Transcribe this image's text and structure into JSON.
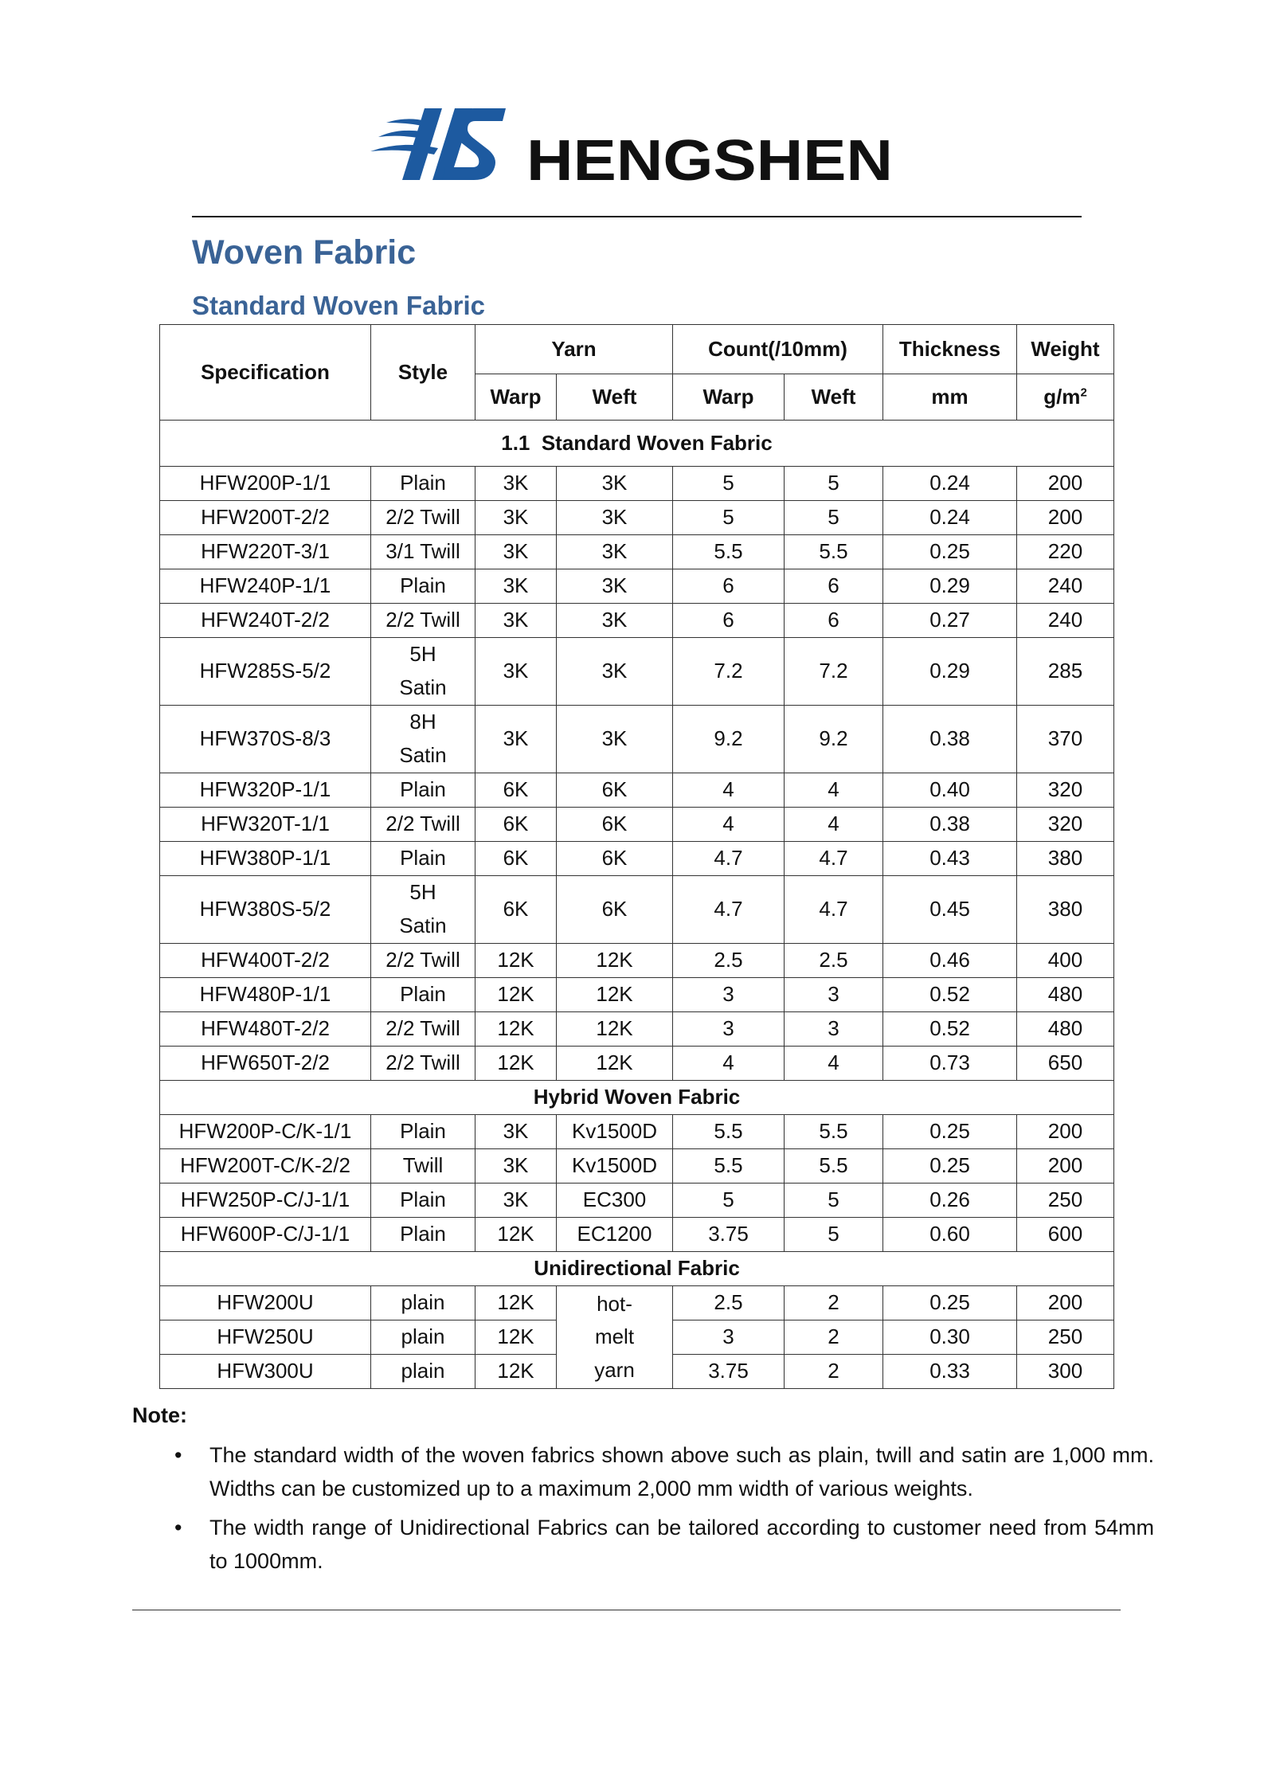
{
  "logo": {
    "monogram": "HS",
    "wordmark": "HENGSHEN",
    "brand_color": "#1d5aa0"
  },
  "title": "Woven Fabric",
  "subtitle": "Standard Woven Fabric",
  "table": {
    "headers": {
      "specification": "Specification",
      "style": "Style",
      "yarn": "Yarn",
      "count": "Count(/10mm)",
      "thickness": "Thickness",
      "weight": "Weight",
      "yarn_warp": "Warp",
      "yarn_weft": "Weft",
      "count_warp": "Warp",
      "count_weft": "Weft",
      "thickness_unit": "mm",
      "weight_unit": "g/m",
      "weight_unit_sup": "2"
    },
    "sections": [
      {
        "title": "1.1  Standard Woven Fabric",
        "rows": [
          [
            "HFW200P-1/1",
            "Plain",
            "3K",
            "3K",
            "5",
            "5",
            "0.24",
            "200"
          ],
          [
            "HFW200T-2/2",
            "2/2 Twill",
            "3K",
            "3K",
            "5",
            "5",
            "0.24",
            "200"
          ],
          [
            "HFW220T-3/1",
            "3/1 Twill",
            "3K",
            "3K",
            "5.5",
            "5.5",
            "0.25",
            "220"
          ],
          [
            "HFW240P-1/1",
            "Plain",
            "3K",
            "3K",
            "6",
            "6",
            "0.29",
            "240"
          ],
          [
            "HFW240T-2/2",
            "2/2 Twill",
            "3K",
            "3K",
            "6",
            "6",
            "0.27",
            "240"
          ],
          [
            "HFW285S-5/2",
            "5H Satin",
            "3K",
            "3K",
            "7.2",
            "7.2",
            "0.29",
            "285"
          ],
          [
            "HFW370S-8/3",
            "8H Satin",
            "3K",
            "3K",
            "9.2",
            "9.2",
            "0.38",
            "370"
          ],
          [
            "HFW320P-1/1",
            "Plain",
            "6K",
            "6K",
            "4",
            "4",
            "0.40",
            "320"
          ],
          [
            "HFW320T-1/1",
            "2/2 Twill",
            "6K",
            "6K",
            "4",
            "4",
            "0.38",
            "320"
          ],
          [
            "HFW380P-1/1",
            "Plain",
            "6K",
            "6K",
            "4.7",
            "4.7",
            "0.43",
            "380"
          ],
          [
            "HFW380S-5/2",
            "5H Satin",
            "6K",
            "6K",
            "4.7",
            "4.7",
            "0.45",
            "380"
          ],
          [
            "HFW400T-2/2",
            "2/2 Twill",
            "12K",
            "12K",
            "2.5",
            "2.5",
            "0.46",
            "400"
          ],
          [
            "HFW480P-1/1",
            "Plain",
            "12K",
            "12K",
            "3",
            "3",
            "0.52",
            "480"
          ],
          [
            "HFW480T-2/2",
            "2/2 Twill",
            "12K",
            "12K",
            "3",
            "3",
            "0.52",
            "480"
          ],
          [
            "HFW650T-2/2",
            "2/2 Twill",
            "12K",
            "12K",
            "4",
            "4",
            "0.73",
            "650"
          ]
        ]
      },
      {
        "title": "Hybrid Woven Fabric",
        "rows": [
          [
            "HFW200P-C/K-1/1",
            "Plain",
            "3K",
            "Kv1500D",
            "5.5",
            "5.5",
            "0.25",
            "200"
          ],
          [
            "HFW200T-C/K-2/2",
            "Twill",
            "3K",
            "Kv1500D",
            "5.5",
            "5.5",
            "0.25",
            "200"
          ],
          [
            "HFW250P-C/J-1/1",
            "Plain",
            "3K",
            "EC300",
            "5",
            "5",
            "0.26",
            "250"
          ],
          [
            "HFW600P-C/J-1/1",
            "Plain",
            "12K",
            "EC1200",
            "3.75",
            "5",
            "0.60",
            "600"
          ]
        ]
      },
      {
        "title": "Unidirectional Fabric",
        "shared_weft": "hot-melt yarn",
        "rows": [
          [
            "HFW200U",
            "plain",
            "12K",
            "",
            "2.5",
            "2",
            "0.25",
            "200"
          ],
          [
            "HFW250U",
            "plain",
            "12K",
            "",
            "3",
            "2",
            "0.30",
            "250"
          ],
          [
            "HFW300U",
            "plain",
            "12K",
            "",
            "3.75",
            "2",
            "0.33",
            "300"
          ]
        ]
      }
    ]
  },
  "note": {
    "label": "Note:",
    "items": [
      "The standard width of the woven fabrics shown above such as plain, twill and satin are 1,000 mm. Widths can be customized up to a maximum 2,000 mm width of various weights.",
      "The width range of Unidirectional Fabrics can be tailored according to customer need from 54mm to 1000mm."
    ]
  }
}
